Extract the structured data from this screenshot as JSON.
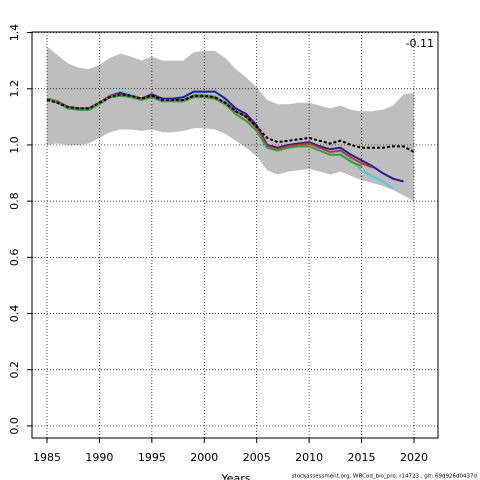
{
  "chart_data": {
    "type": "line",
    "annotation": "-0.11",
    "x_label": "Years",
    "footer": "stockassessment.org, WBCod_bio_pro, r14723 , git: 69d926d0437d",
    "x": [
      1985,
      1986,
      1987,
      1988,
      1989,
      1990,
      1991,
      1992,
      1993,
      1994,
      1995,
      1996,
      1997,
      1998,
      1999,
      2000,
      2001,
      2002,
      2003,
      2004,
      2005,
      2006,
      2007,
      2008,
      2009,
      2010,
      2011,
      2012,
      2013,
      2014,
      2015,
      2016,
      2017,
      2018,
      2019,
      2020
    ],
    "band": {
      "color": "#bebebe",
      "upper": [
        1.35,
        1.32,
        1.29,
        1.275,
        1.27,
        1.285,
        1.31,
        1.325,
        1.315,
        1.3,
        1.315,
        1.3,
        1.3,
        1.3,
        1.33,
        1.335,
        1.335,
        1.31,
        1.27,
        1.24,
        1.205,
        1.16,
        1.145,
        1.145,
        1.15,
        1.15,
        1.14,
        1.13,
        1.14,
        1.125,
        1.12,
        1.12,
        1.125,
        1.14,
        1.18,
        1.185
      ],
      "lower": [
        1.0,
        1.005,
        1.0,
        1.0,
        1.005,
        1.025,
        1.045,
        1.055,
        1.055,
        1.05,
        1.055,
        1.045,
        1.045,
        1.05,
        1.06,
        1.06,
        1.055,
        1.04,
        1.015,
        0.99,
        0.96,
        0.91,
        0.895,
        0.905,
        0.91,
        0.915,
        0.905,
        0.895,
        0.905,
        0.89,
        0.875,
        0.865,
        0.855,
        0.84,
        0.82,
        0.8
      ]
    },
    "series": [
      {
        "color": "#5bc5dd",
        "values": [
          1.165,
          1.155,
          1.135,
          1.125,
          1.125,
          1.15,
          1.175,
          1.19,
          1.18,
          1.165,
          1.18,
          1.165,
          1.165,
          1.165,
          1.18,
          1.18,
          1.175,
          1.155,
          1.12,
          1.1,
          1.06,
          1.0,
          0.985,
          0.995,
          1.0,
          1.005,
          0.99,
          0.975,
          0.975,
          0.945,
          0.91,
          0.89,
          0.87,
          0.845,
          null,
          null
        ]
      },
      {
        "color": "#2c1d8f",
        "values": [
          1.165,
          1.155,
          1.135,
          1.13,
          1.13,
          1.15,
          1.175,
          1.185,
          1.175,
          1.165,
          1.18,
          1.165,
          1.165,
          1.17,
          1.19,
          1.19,
          1.19,
          1.165,
          1.13,
          1.11,
          1.07,
          1.0,
          0.99,
          1.0,
          1.005,
          1.01,
          0.995,
          0.985,
          0.99,
          0.965,
          0.945,
          0.925,
          0.9,
          0.88,
          0.87,
          null
        ]
      },
      {
        "color": "#c0392b",
        "values": [
          1.165,
          1.155,
          1.135,
          1.13,
          1.13,
          1.15,
          1.175,
          1.18,
          1.175,
          1.165,
          1.175,
          1.16,
          1.16,
          1.16,
          1.175,
          1.175,
          1.17,
          1.15,
          1.12,
          1.1,
          1.06,
          0.995,
          0.985,
          0.995,
          1.0,
          1.005,
          0.99,
          0.975,
          0.98,
          0.955,
          0.935,
          0.92,
          null,
          null,
          null,
          null
        ]
      },
      {
        "color": "#3c9a3c",
        "values": [
          1.165,
          1.15,
          1.13,
          1.125,
          1.125,
          1.145,
          1.17,
          1.175,
          1.17,
          1.16,
          1.17,
          1.155,
          1.155,
          1.155,
          1.17,
          1.17,
          1.165,
          1.145,
          1.11,
          1.085,
          1.05,
          0.99,
          0.98,
          0.99,
          0.995,
          0.995,
          0.98,
          0.965,
          0.965,
          0.94,
          0.925,
          null,
          null,
          null,
          null,
          null
        ]
      },
      {
        "color": "#000000",
        "dashed": true,
        "values": [
          1.16,
          1.15,
          1.135,
          1.13,
          1.13,
          1.15,
          1.17,
          1.18,
          1.175,
          1.165,
          1.175,
          1.16,
          1.16,
          1.16,
          1.175,
          1.175,
          1.17,
          1.15,
          1.12,
          1.1,
          1.065,
          1.025,
          1.01,
          1.015,
          1.02,
          1.025,
          1.015,
          1.005,
          1.015,
          1.0,
          0.99,
          0.99,
          0.99,
          0.995,
          0.995,
          0.975
        ]
      }
    ],
    "xlim": [
      1983.57,
      2022.29
    ],
    "xticks": [
      1985,
      1990,
      1995,
      2000,
      2005,
      2010,
      2015,
      2020
    ],
    "ylim": [
      -0.043,
      1.402
    ],
    "yticks": [
      {
        "value": 0,
        "label": "0.0"
      },
      {
        "value": 0.2,
        "label": "0.2"
      },
      {
        "value": 0.4,
        "label": "0.4"
      },
      {
        "value": 0.6,
        "label": "0.6"
      },
      {
        "value": 0.8,
        "label": "0.8"
      },
      {
        "value": 1,
        "label": "1.0"
      },
      {
        "value": 1.2,
        "label": "1.2"
      },
      {
        "value": 1.4,
        "label": "1.4"
      }
    ],
    "grid": true
  }
}
